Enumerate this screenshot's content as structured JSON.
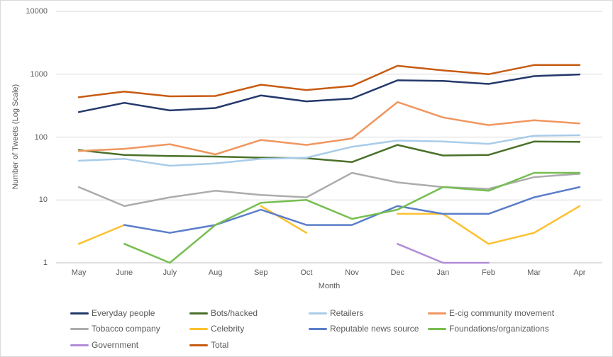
{
  "chart_data": {
    "type": "line",
    "title": "",
    "xlabel": "Month",
    "ylabel": "Number of Tweets (Log Scale)",
    "y_scale": "log10",
    "ylim": [
      1,
      10000
    ],
    "y_ticks": [
      1,
      10,
      100,
      1000,
      10000
    ],
    "grid": "horizontal-major",
    "legend_position": "bottom",
    "categories": [
      "May",
      "June",
      "July",
      "Aug",
      "Sep",
      "Oct",
      "Nov",
      "Dec",
      "Jan",
      "Feb",
      "Mar",
      "Apr"
    ],
    "series": [
      {
        "name": "Everyday people",
        "color": "#24396B",
        "values": [
          250,
          350,
          265,
          290,
          460,
          370,
          410,
          800,
          780,
          700,
          930,
          990
        ]
      },
      {
        "name": "Bots/hacked",
        "color": "#4A7029",
        "values": [
          62,
          52,
          50,
          49,
          47,
          46,
          40,
          75,
          51,
          52,
          85,
          84
        ]
      },
      {
        "name": "Retailers",
        "color": "#A9CCE9",
        "values": [
          42,
          45,
          35,
          38,
          45,
          47,
          70,
          88,
          85,
          78,
          105,
          107
        ]
      },
      {
        "name": "E-cig community movement",
        "color": "#F0965F",
        "values": [
          60,
          65,
          77,
          53,
          90,
          75,
          95,
          360,
          205,
          155,
          185,
          165
        ]
      },
      {
        "name": "Tobacco company",
        "color": "#ACACAC",
        "values": [
          16,
          8,
          11,
          14,
          12,
          11,
          27,
          19,
          16,
          15,
          23,
          26
        ]
      },
      {
        "name": "Celebrity",
        "color": "#FBC12E",
        "values": [
          2,
          4,
          null,
          null,
          8,
          3,
          null,
          6,
          6,
          2,
          3,
          8
        ]
      },
      {
        "name": "Reputable news source",
        "color": "#5B7EC9",
        "values": [
          null,
          4,
          3,
          4,
          7,
          4,
          4,
          8,
          6,
          6,
          11,
          16
        ]
      },
      {
        "name": "Foundations/organizations",
        "color": "#76BE50",
        "values": [
          null,
          2,
          1,
          4,
          9,
          10,
          5,
          7,
          16,
          14,
          27,
          27
        ]
      },
      {
        "name": "Government",
        "color": "#B18CD7",
        "values": [
          null,
          null,
          null,
          null,
          null,
          null,
          null,
          2,
          1,
          1,
          null,
          null
        ]
      },
      {
        "name": "Total",
        "color": "#C75B12",
        "values": [
          430,
          530,
          445,
          450,
          680,
          560,
          650,
          1360,
          1150,
          1000,
          1400,
          1400
        ]
      }
    ],
    "gridline_color": "#D9D9D9",
    "axis_line_color": "#BFBFBF",
    "text_color": "#595959"
  }
}
